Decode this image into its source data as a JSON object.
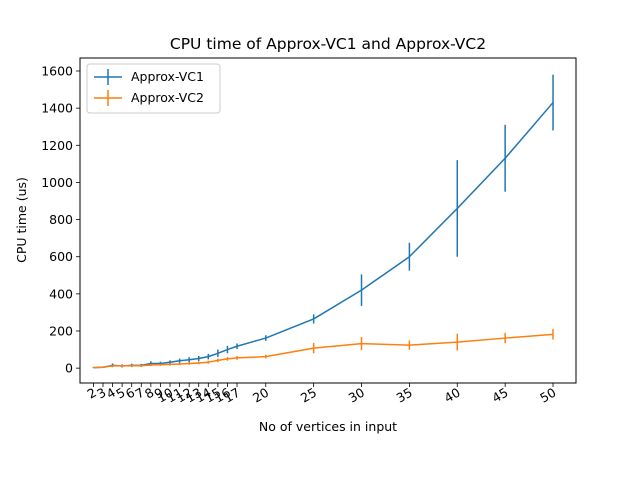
{
  "chart_data": {
    "type": "line",
    "title": "CPU time of Approx-VC1 and Approx-VC2",
    "xlabel": "No of vertices in input",
    "ylabel": "CPU time (us)",
    "xlim": [
      0.6,
      52.4
    ],
    "ylim": [
      -80,
      1670
    ],
    "x_ticks": [
      2,
      3,
      4,
      5,
      6,
      7,
      8,
      9,
      10,
      11,
      12,
      13,
      14,
      15,
      16,
      17,
      20,
      25,
      30,
      35,
      40,
      45,
      50
    ],
    "y_ticks": [
      0,
      200,
      400,
      600,
      800,
      1000,
      1200,
      1400,
      1600
    ],
    "grid": false,
    "legend_position": "top-left",
    "series": [
      {
        "name": "Approx-VC1",
        "color": "#1f77b4",
        "x": [
          2,
          3,
          4,
          5,
          6,
          7,
          8,
          9,
          10,
          11,
          12,
          13,
          14,
          15,
          16,
          17,
          20,
          25,
          30,
          35,
          40,
          45,
          50
        ],
        "y": [
          3,
          5,
          15,
          12,
          15,
          15,
          25,
          25,
          32,
          40,
          45,
          52,
          62,
          80,
          100,
          118,
          162,
          265,
          420,
          600,
          860,
          1130,
          1430
        ],
        "yerr": [
          3,
          4,
          10,
          8,
          9,
          8,
          12,
          10,
          10,
          12,
          14,
          14,
          15,
          20,
          20,
          15,
          15,
          25,
          85,
          75,
          260,
          180,
          150
        ]
      },
      {
        "name": "Approx-VC2",
        "color": "#ff7f0e",
        "x": [
          2,
          3,
          4,
          5,
          6,
          7,
          8,
          9,
          10,
          11,
          12,
          13,
          14,
          15,
          16,
          17,
          20,
          25,
          30,
          35,
          40,
          45,
          50
        ],
        "y": [
          3,
          5,
          12,
          12,
          13,
          13,
          17,
          18,
          20,
          22,
          25,
          28,
          32,
          42,
          50,
          55,
          62,
          108,
          132,
          124,
          140,
          162,
          182
        ],
        "yerr": [
          2,
          3,
          5,
          5,
          5,
          5,
          6,
          6,
          6,
          6,
          7,
          7,
          8,
          10,
          10,
          10,
          10,
          28,
          35,
          25,
          45,
          28,
          28
        ]
      }
    ]
  }
}
